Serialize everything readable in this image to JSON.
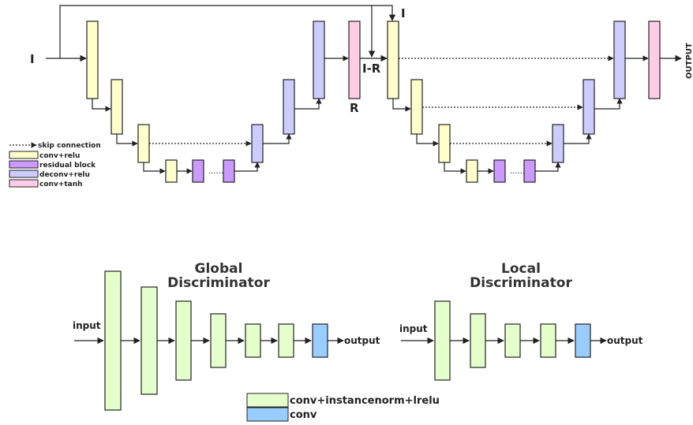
{
  "generator": {
    "input_label": "I",
    "input_top_label": "I",
    "residual_label": "R",
    "diff_label": "I-R",
    "output_label": "OUTPUT",
    "ellipsis": "......"
  },
  "legend_generator": {
    "items": [
      {
        "label": "skip connection",
        "kind": "dotted-arrow"
      },
      {
        "label": "conv+relu",
        "color": "#FFFFCC"
      },
      {
        "label": "residual block",
        "color": "#CC99FF"
      },
      {
        "label": "deconv+relu",
        "color": "#CCCCFF"
      },
      {
        "label": "conv+tanh",
        "color": "#FFCCE5"
      }
    ]
  },
  "global_discriminator": {
    "title_line1": "Global",
    "title_line2": "Discriminator",
    "input_label": "input",
    "output_label": "output"
  },
  "local_discriminator": {
    "title_line1": "Local",
    "title_line2": "Discriminator",
    "input_label": "input",
    "output_label": "output"
  },
  "legend_discriminator": {
    "items": [
      {
        "label": "conv+instancenorm+lrelu",
        "color": "#E5FFCC"
      },
      {
        "label": "conv",
        "color": "#99CCFF"
      }
    ]
  },
  "colors": {
    "conv_relu": "#FFFFCC",
    "residual_block": "#CC99FF",
    "deconv_relu": "#CCCCFF",
    "conv_tanh": "#FFCCE5",
    "disc_conv": "#E5FFCC",
    "disc_out": "#99CCFF",
    "line": "#222222"
  }
}
